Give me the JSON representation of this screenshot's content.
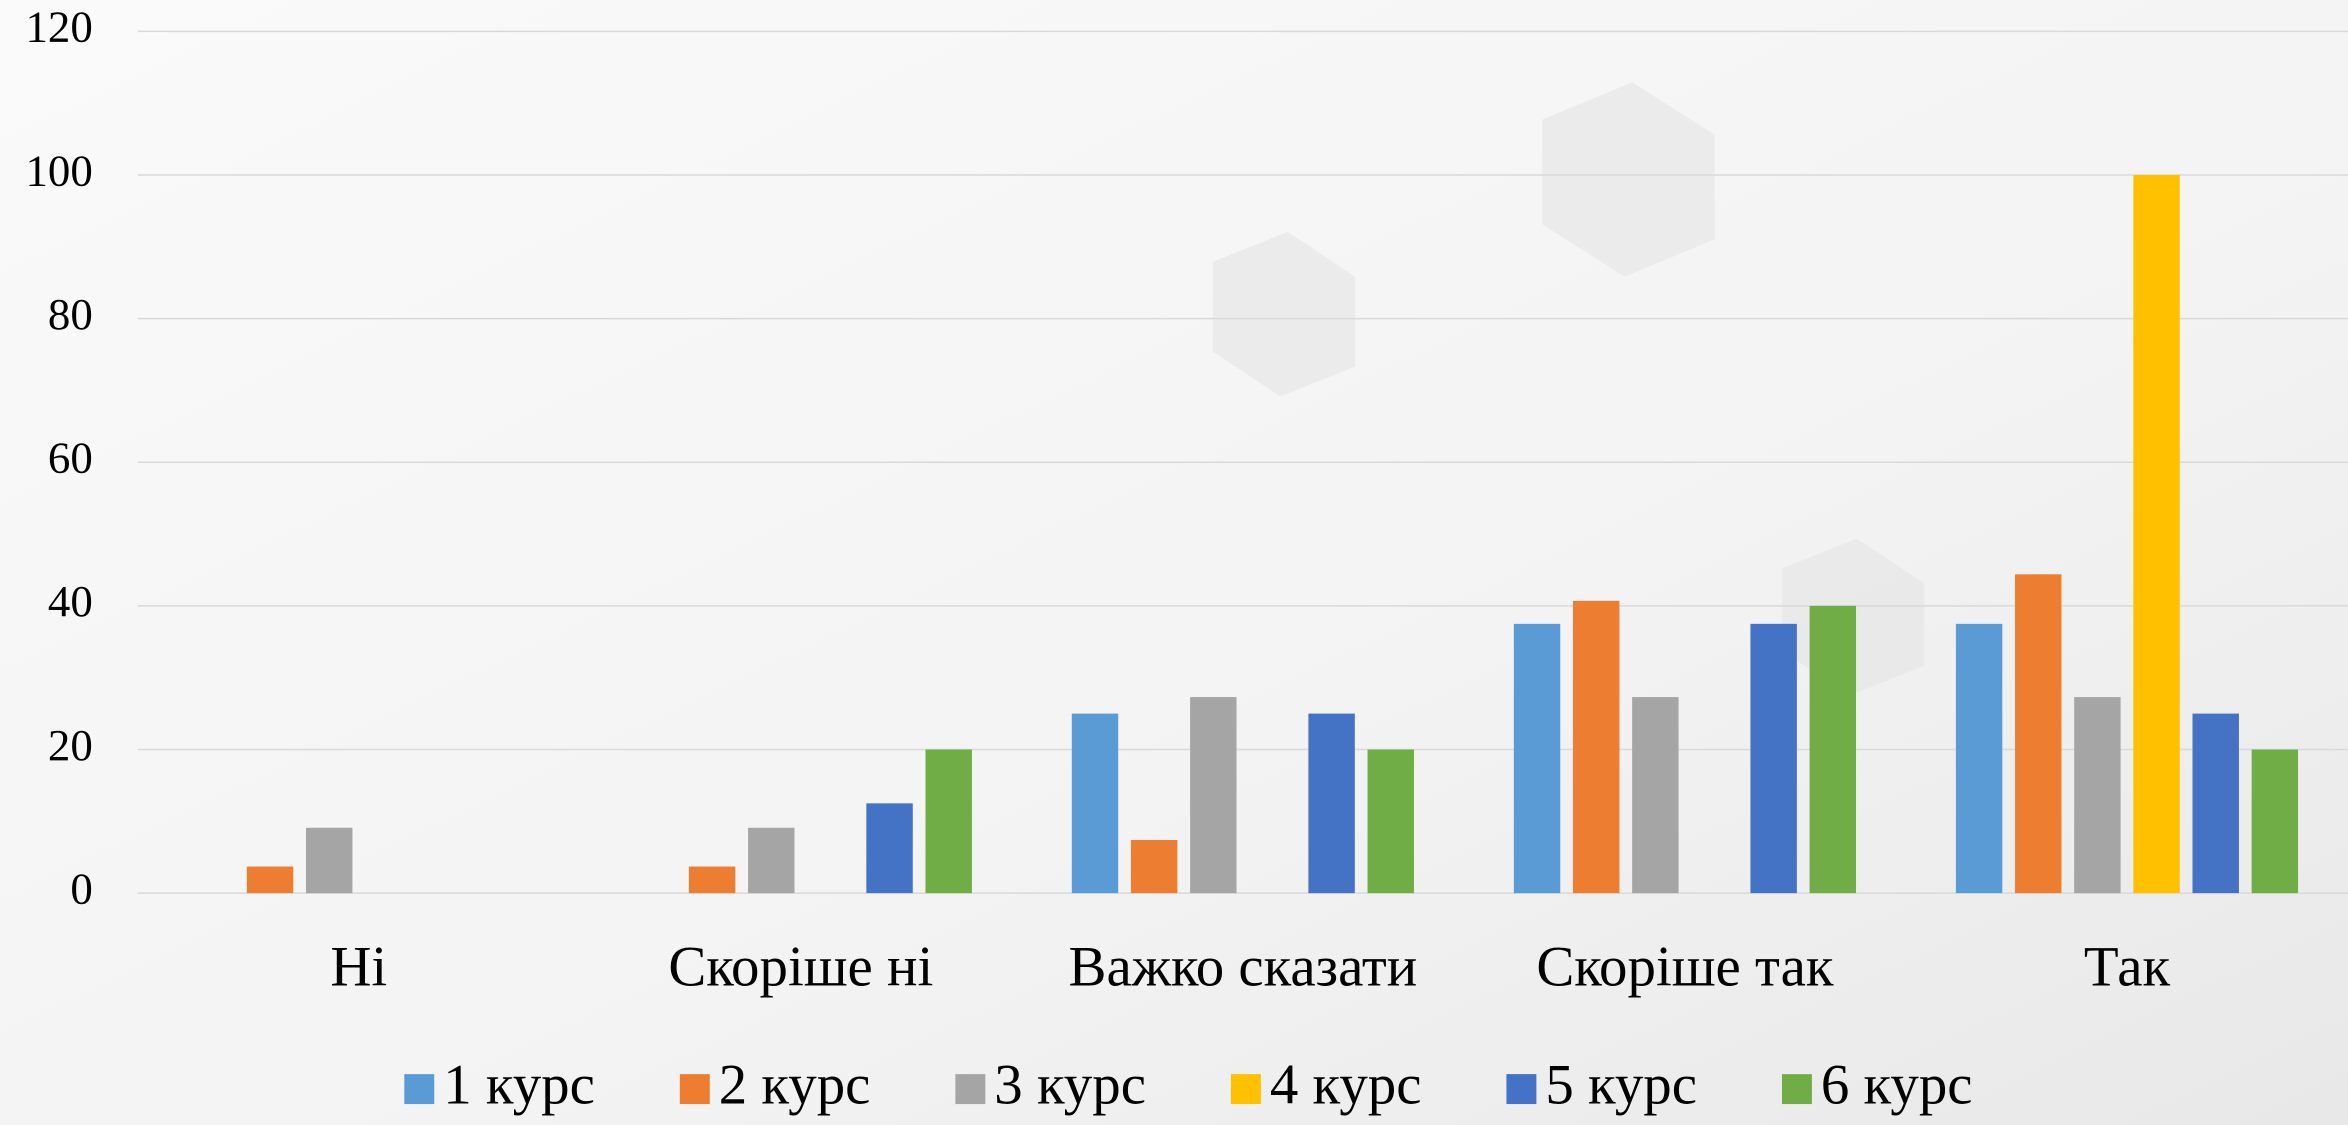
{
  "chart_data": {
    "type": "bar",
    "categories": [
      "Ні",
      "Скоріше ні",
      "Важко сказати",
      "Скоріше так",
      "Так"
    ],
    "series": [
      {
        "name": "1 курс",
        "color": "#5b9bd5",
        "values": [
          0,
          0,
          25,
          37.5,
          37.5
        ]
      },
      {
        "name": "2 курс",
        "color": "#ed7d31",
        "values": [
          3.7,
          3.7,
          7.4,
          40.7,
          44.4
        ]
      },
      {
        "name": "3 курс",
        "color": "#a5a5a5",
        "values": [
          9.1,
          9.1,
          27.3,
          27.3,
          27.3
        ]
      },
      {
        "name": "4 курс",
        "color": "#ffc000",
        "values": [
          0,
          0,
          0,
          0,
          100
        ]
      },
      {
        "name": "5 курс",
        "color": "#4472c4",
        "values": [
          0,
          12.5,
          25,
          37.5,
          25
        ]
      },
      {
        "name": "6 курс",
        "color": "#70ad47",
        "values": [
          0,
          20,
          20,
          40,
          20
        ]
      }
    ],
    "ylim": [
      0,
      120
    ],
    "yticks": [
      0,
      20,
      40,
      60,
      80,
      100,
      120
    ],
    "grid": true,
    "legend": "bottom"
  }
}
